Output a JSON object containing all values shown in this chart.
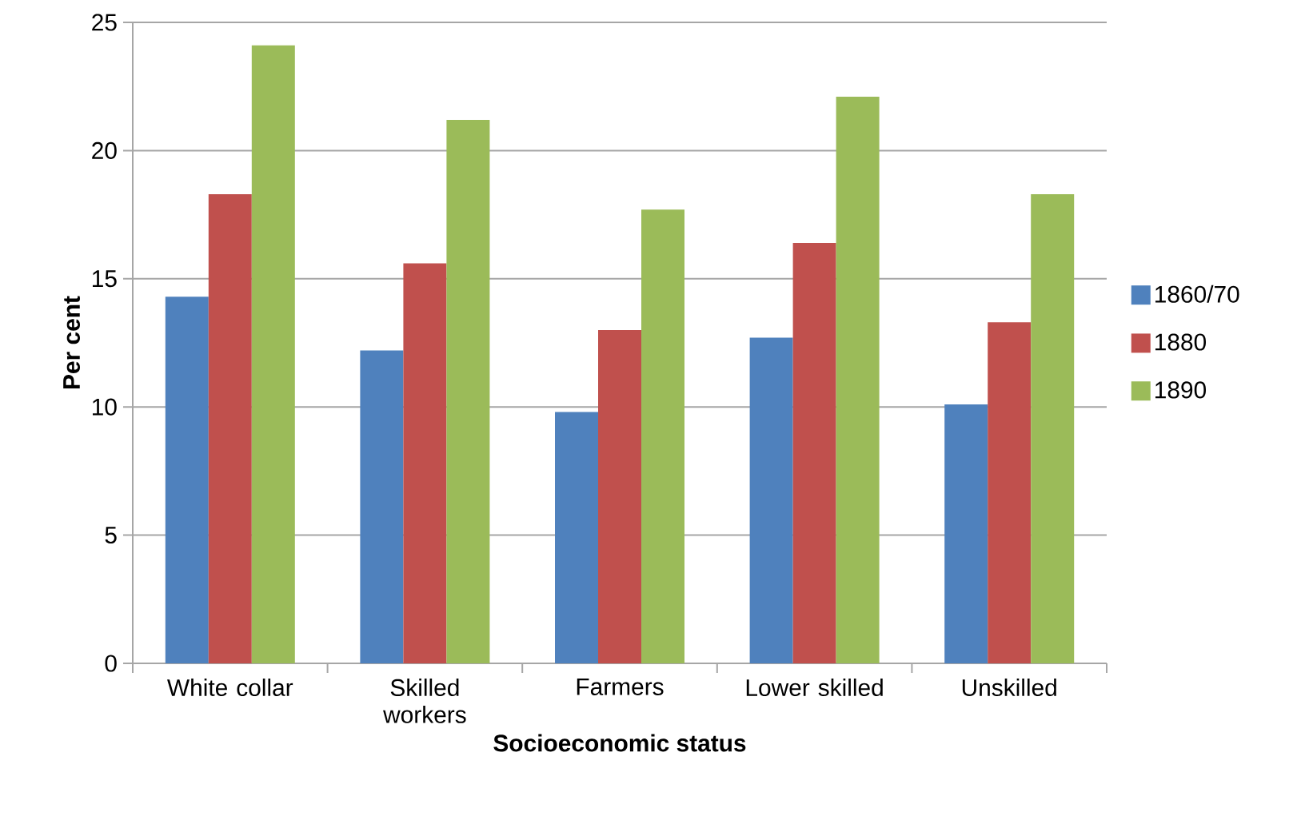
{
  "chart_data": {
    "type": "bar",
    "xlabel": "Socioeconomic status",
    "ylabel": "Per cent",
    "categories": [
      "White collar",
      "Skilled workers",
      "Farmers",
      "Lower skilled",
      "Unskilled"
    ],
    "series": [
      {
        "name": "1860/70",
        "color": "#4f81bd",
        "values": [
          14.3,
          12.2,
          9.8,
          12.7,
          10.1
        ]
      },
      {
        "name": "1880",
        "color": "#c0504d",
        "values": [
          18.3,
          15.6,
          13.0,
          16.4,
          13.3
        ]
      },
      {
        "name": "1890",
        "color": "#9bbb59",
        "values": [
          24.1,
          21.2,
          17.7,
          22.1,
          18.3
        ]
      }
    ],
    "ylim": [
      0,
      25
    ],
    "yticks": [
      0,
      5,
      10,
      15,
      20,
      25
    ],
    "grid": "y",
    "legend": "right"
  }
}
